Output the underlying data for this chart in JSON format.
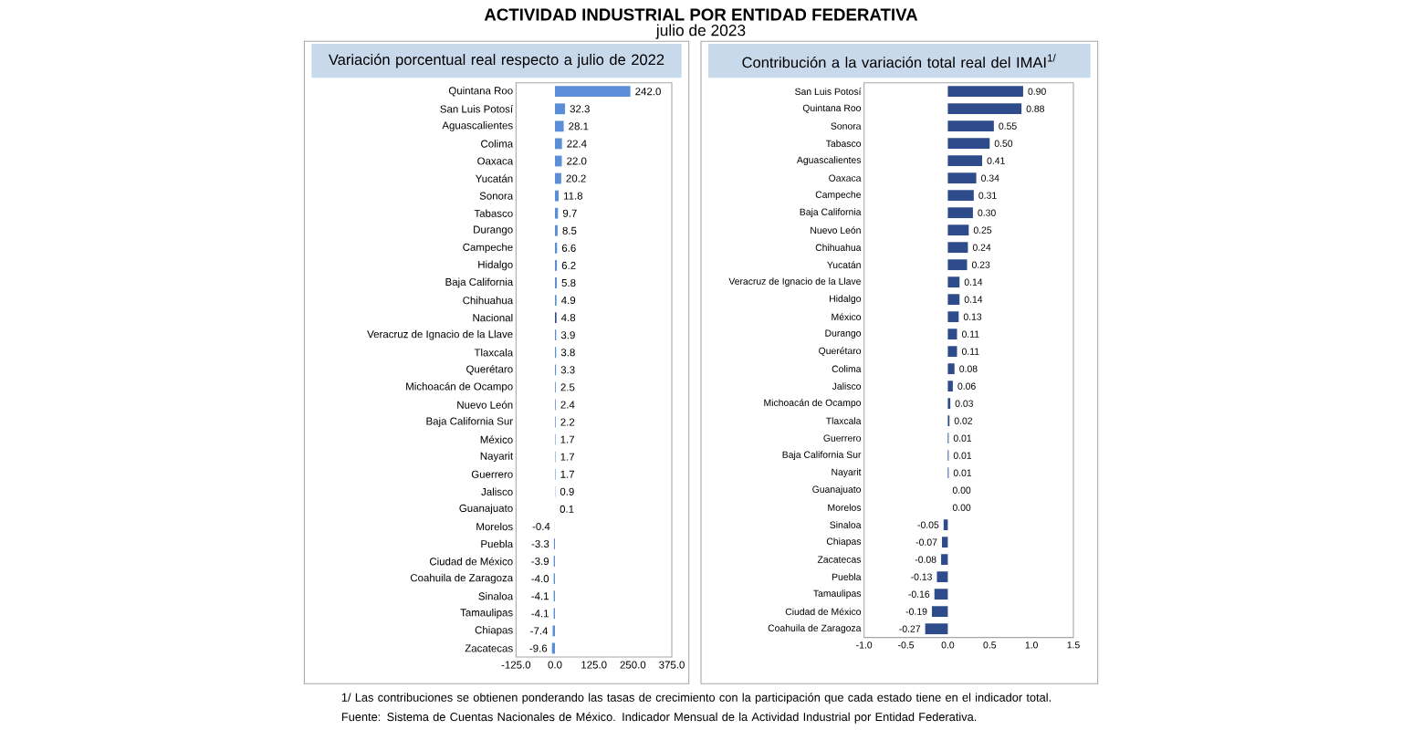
{
  "chart_data": [
    {
      "type": "other",
      "title": "ACTIVIDAD INDUSTRIAL POR ENTIDAD FEDERATIVA",
      "subtitle": "julio de 2023",
      "annotations": [
        "1/ Las contribuciones se obtienen ponderando las tasas de crecimiento con la participación que cada estado tiene en el indicador total.",
        "Fuente: Sistema de Cuentas Nacionales de México. Indicador Mensual de la Actividad Industrial por Entidad Federativa."
      ]
    },
    {
      "type": "bar",
      "orientation": "horizontal",
      "title": "Variación porcentual real respecto a julio de 2022",
      "categories": [
        "Quintana Roo",
        "San Luis Potosí",
        "Aguascalientes",
        "Colima",
        "Oaxaca",
        "Yucatán",
        "Sonora",
        "Tabasco",
        "Durango",
        "Campeche",
        "Hidalgo",
        "Baja California",
        "Chihuahua",
        "Nacional",
        "Veracruz de Ignacio de la Llave",
        "Tlaxcala",
        "Querétaro",
        "Michoacán de Ocampo",
        "Nuevo León",
        "Baja California Sur",
        "México",
        "Nayarit",
        "Guerrero",
        "Jalisco",
        "Guanajuato",
        "Morelos",
        "Puebla",
        "Ciudad de México",
        "Coahuila de Zaragoza",
        "Sinaloa",
        "Tamaulipas",
        "Chiapas",
        "Zacatecas"
      ],
      "values": [
        242.0,
        32.3,
        28.1,
        22.4,
        22.0,
        20.2,
        11.8,
        9.7,
        8.5,
        6.6,
        6.2,
        5.8,
        4.9,
        4.8,
        3.9,
        3.8,
        3.3,
        2.5,
        2.4,
        2.2,
        1.7,
        1.7,
        1.7,
        0.9,
        0.1,
        -0.4,
        -3.3,
        -3.9,
        -4.0,
        -4.1,
        -4.1,
        -7.4,
        -9.6
      ],
      "value_labels": [
        "242.0",
        "32.3",
        "28.1",
        "22.4",
        "22.0",
        "20.2",
        "11.8",
        "9.7",
        "8.5",
        "6.6",
        "6.2",
        "5.8",
        "4.9",
        "4.8",
        "3.9",
        "3.8",
        "3.3",
        "2.5",
        "2.4",
        "2.2",
        "1.7",
        "1.7",
        "1.7",
        "0.9",
        "0.1",
        "-0.4",
        "-3.3",
        "-3.9",
        "-4.0",
        "-4.1",
        "-4.1",
        "-7.4",
        "-9.6"
      ],
      "colors": [
        "#5b8ed6",
        "#5b8ed6",
        "#5b8ed6",
        "#5b8ed6",
        "#5b8ed6",
        "#5b8ed6",
        "#5b8ed6",
        "#5b8ed6",
        "#5b8ed6",
        "#5b8ed6",
        "#5b8ed6",
        "#5b8ed6",
        "#5b8ed6",
        "#2e4c8c",
        "#5b8ed6",
        "#5b8ed6",
        "#5b8ed6",
        "#5b8ed6",
        "#5b8ed6",
        "#5b8ed6",
        "#5b8ed6",
        "#5b8ed6",
        "#5b8ed6",
        "#5b8ed6",
        "#5b8ed6",
        "#5b8ed6",
        "#5b8ed6",
        "#5b8ed6",
        "#5b8ed6",
        "#5b8ed6",
        "#5b8ed6",
        "#5b8ed6",
        "#5b8ed6"
      ],
      "xlim": [
        -125,
        375
      ],
      "xticks": [
        {
          "value": -125,
          "label": "-125.0"
        },
        {
          "value": 0,
          "label": "0.0"
        },
        {
          "value": 125,
          "label": "125.0"
        },
        {
          "value": 250,
          "label": "250.0"
        },
        {
          "value": 375,
          "label": "375.0"
        }
      ]
    },
    {
      "type": "bar",
      "orientation": "horizontal",
      "title": "Contribución a la variación total real del IMAI$^{1/}$",
      "categories": [
        "San Luis Potosí",
        "Quintana Roo",
        "Sonora",
        "Tabasco",
        "Aguascalientes",
        "Oaxaca",
        "Campeche",
        "Baja California",
        "Nuevo León",
        "Chihuahua",
        "Yucatán",
        "Veracruz de Ignacio de la Llave",
        "Hidalgo",
        "México",
        "Durango",
        "Querétaro",
        "Colima",
        "Jalisco",
        "Michoacán de Ocampo",
        "Tlaxcala",
        "Guerrero",
        "Baja California Sur",
        "Nayarit",
        "Guanajuato",
        "Morelos",
        "Sinaloa",
        "Chiapas",
        "Zacatecas",
        "Puebla",
        "Tamaulipas",
        "Ciudad de México",
        "Coahuila de Zaragoza"
      ],
      "values": [
        0.9,
        0.88,
        0.55,
        0.5,
        0.41,
        0.34,
        0.31,
        0.3,
        0.25,
        0.24,
        0.23,
        0.14,
        0.14,
        0.13,
        0.11,
        0.11,
        0.08,
        0.06,
        0.03,
        0.02,
        0.01,
        0.01,
        0.01,
        0.0,
        0.0,
        -0.05,
        -0.07,
        -0.08,
        -0.13,
        -0.16,
        -0.19,
        -0.27
      ],
      "value_labels": [
        "0.90",
        "0.88",
        "0.55",
        "0.50",
        "0.41",
        "0.34",
        "0.31",
        "0.30",
        "0.25",
        "0.24",
        "0.23",
        "0.14",
        "0.14",
        "0.13",
        "0.11",
        "0.11",
        "0.08",
        "0.06",
        "0.03",
        "0.02",
        "0.01",
        "0.01",
        "0.01",
        "0.00",
        "0.00",
        "-0.05",
        "-0.07",
        "-0.08",
        "-0.13",
        "-0.16",
        "-0.19",
        "-0.27"
      ],
      "colors": [
        "#2e4c8c",
        "#2e4c8c",
        "#2e4c8c",
        "#2e4c8c",
        "#2e4c8c",
        "#2e4c8c",
        "#2e4c8c",
        "#2e4c8c",
        "#2e4c8c",
        "#2e4c8c",
        "#2e4c8c",
        "#2e4c8c",
        "#2e4c8c",
        "#2e4c8c",
        "#2e4c8c",
        "#2e4c8c",
        "#2e4c8c",
        "#2e4c8c",
        "#2e4c8c",
        "#2e4c8c",
        "#2e4c8c",
        "#2e4c8c",
        "#2e4c8c",
        "#2e4c8c",
        "#2e4c8c",
        "#2e4c8c",
        "#2e4c8c",
        "#2e4c8c",
        "#2e4c8c",
        "#2e4c8c",
        "#2e4c8c",
        "#2e4c8c"
      ],
      "xlim": [
        -1.0,
        1.5
      ],
      "xticks": [
        {
          "value": -1.0,
          "label": "-1.0"
        },
        {
          "value": -0.5,
          "label": "-0.5"
        },
        {
          "value": 0,
          "label": "0.0"
        },
        {
          "value": 0.5,
          "label": "0.5"
        },
        {
          "value": 1.0,
          "label": "1.0"
        },
        {
          "value": 1.5,
          "label": "1.5"
        }
      ]
    }
  ]
}
